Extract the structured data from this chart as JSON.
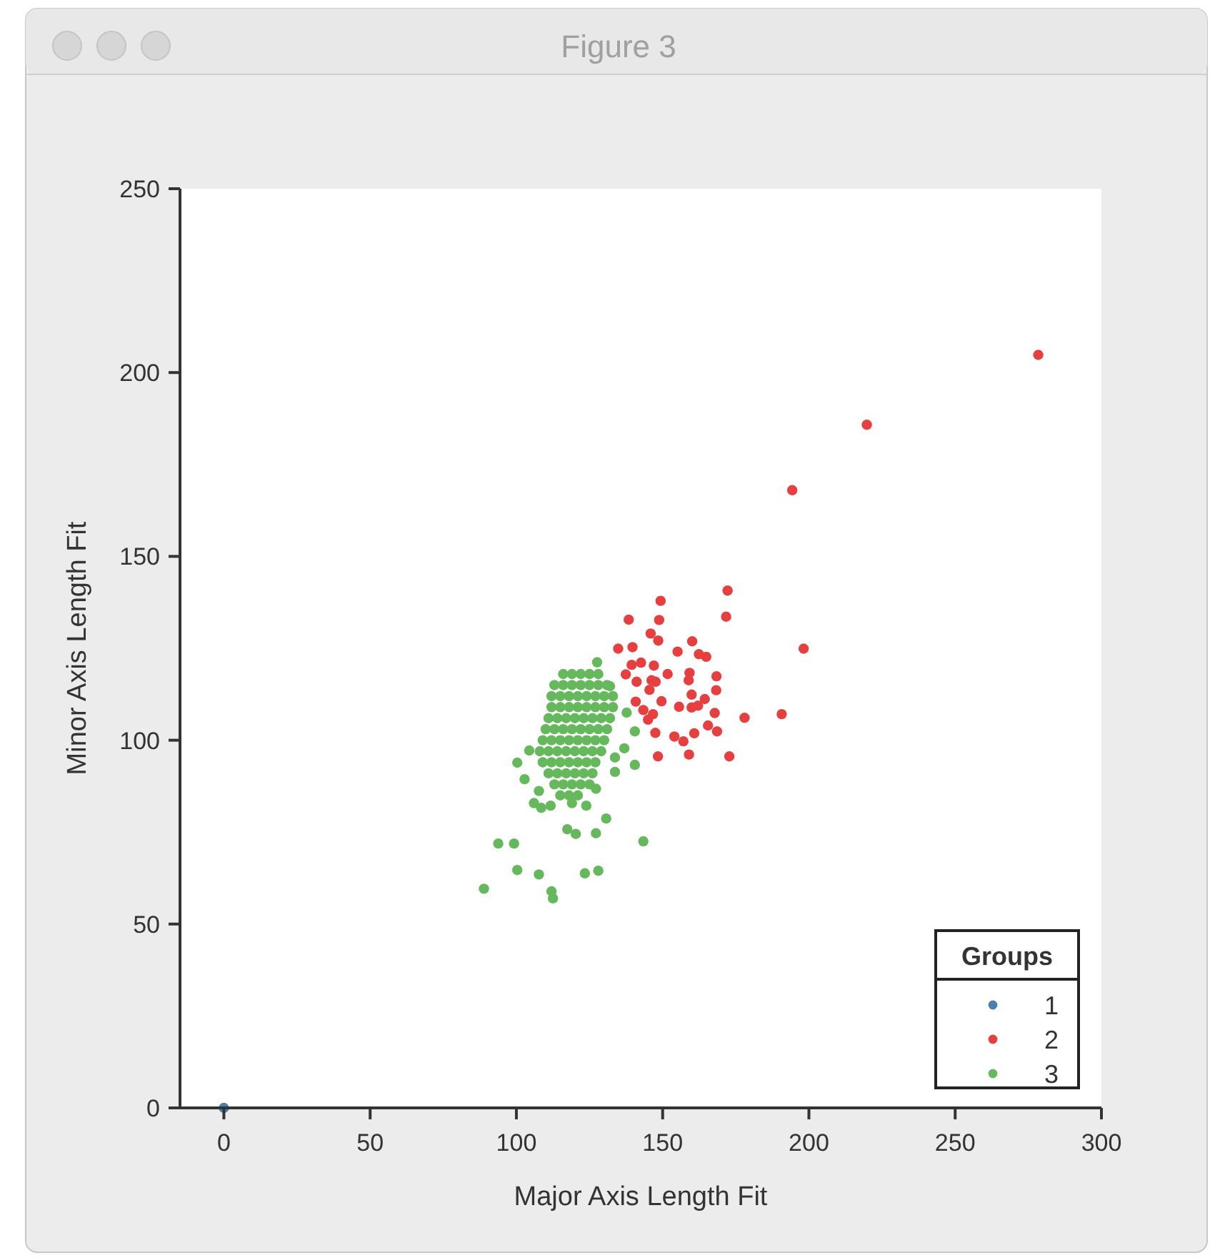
{
  "chart_data": {
    "type": "scatter",
    "title": "Figure 3",
    "xlabel": "Major Axis Length Fit",
    "ylabel": "Minor Axis Length Fit",
    "legend_title": "Groups",
    "xlim": [
      -15,
      300
    ],
    "ylim": [
      0,
      250
    ],
    "xticks": [
      0,
      50,
      100,
      150,
      200,
      250,
      300
    ],
    "yticks": [
      0,
      50,
      100,
      150,
      200,
      250
    ],
    "grid": false,
    "legend": "bottom right",
    "marker": "circle",
    "series": [
      {
        "name": "1",
        "color": "#4a7fb0",
        "x": [
          0
        ],
        "values": [
          0
        ]
      },
      {
        "name": "2",
        "color": "#e5403f",
        "x": [
          278.4,
          219.8,
          194.3,
          172.2,
          171.7,
          149.3,
          148.8,
          138.4,
          198.2,
          145.9,
          148.5,
          134.8,
          139.7,
          160.1,
          155.1,
          162.4,
          164.9,
          142.6,
          139.4,
          137.4,
          147.0,
          141.1,
          151.7,
          159.2,
          158.9,
          168.4,
          168.3,
          146.2,
          147.6,
          145.5,
          159.9,
          164.4,
          149.6,
          155.6,
          159.9,
          162.1,
          140.8,
          143.4,
          146.7,
          145.0,
          167.8,
          178.0,
          190.7,
          147.5,
          154.0,
          157.1,
          160.8,
          165.5,
          168.6,
          148.4,
          159.0,
          172.8
        ],
        "values": [
          204.8,
          185.8,
          168.0,
          140.7,
          133.6,
          137.9,
          132.7,
          132.8,
          124.9,
          129.0,
          127.1,
          124.9,
          125.3,
          126.9,
          124.1,
          123.4,
          122.7,
          121.1,
          120.5,
          117.9,
          120.3,
          115.9,
          118.0,
          118.3,
          116.3,
          117.4,
          113.6,
          116.3,
          115.9,
          113.7,
          112.4,
          111.2,
          110.6,
          109.1,
          108.9,
          109.4,
          110.5,
          108.2,
          107.1,
          105.6,
          107.4,
          106.1,
          107.1,
          102.0,
          101.0,
          99.7,
          101.9,
          104.0,
          102.4,
          95.6,
          96.1,
          95.6
        ]
      },
      {
        "name": "3",
        "color": "#66b85c",
        "x": [
          127.6,
          88.9,
          93.8,
          99.2,
          100.3,
          107.7,
          112.0,
          112.5,
          123.4,
          128.0,
          143.4,
          120.3,
          117.4,
          127.2,
          130.7,
          123.9,
          119.0,
          111.7,
          108.5,
          106.0,
          102.8,
          100.3,
          104.4,
          107.7,
          136.9,
          140.5,
          133.7,
          133.7,
          127.2,
          137.7,
          140.5,
          132.0,
          116,
          119,
          122,
          125,
          128,
          113,
          116,
          119,
          122,
          125,
          128,
          131,
          112,
          115,
          118,
          121,
          124,
          127,
          130,
          133,
          112,
          115,
          118,
          121,
          124,
          127,
          130,
          133,
          111,
          114,
          117,
          120,
          123,
          126,
          129,
          132,
          110,
          113,
          116,
          119,
          122,
          125,
          128,
          131,
          109,
          112,
          115,
          118,
          121,
          124,
          127,
          130,
          108,
          111,
          114,
          117,
          120,
          123,
          126,
          129,
          109,
          112,
          115,
          118,
          121,
          124,
          127,
          111,
          114,
          117,
          120,
          123,
          126,
          113,
          116,
          119,
          122,
          125,
          115,
          118,
          121
        ],
        "values": [
          121.2,
          59.6,
          71.9,
          71.9,
          64.7,
          63.5,
          58.9,
          57.0,
          63.8,
          64.5,
          72.5,
          74.5,
          75.8,
          74.7,
          78.7,
          82.2,
          82.9,
          82.2,
          81.6,
          82.9,
          89.4,
          93.9,
          97.2,
          86.2,
          97.8,
          93.3,
          95.3,
          91.4,
          86.8,
          107.5,
          102.4,
          114.7,
          118,
          118,
          118,
          118,
          118,
          115,
          115,
          115,
          115,
          115,
          115,
          115,
          112,
          112,
          112,
          112,
          112,
          112,
          112,
          112,
          109,
          109,
          109,
          109,
          109,
          109,
          109,
          109,
          106,
          106,
          106,
          106,
          106,
          106,
          106,
          106,
          103,
          103,
          103,
          103,
          103,
          103,
          103,
          103,
          100,
          100,
          100,
          100,
          100,
          100,
          100,
          100,
          97,
          97,
          97,
          97,
          97,
          97,
          97,
          97,
          94,
          94,
          94,
          94,
          94,
          94,
          94,
          91,
          91,
          91,
          91,
          91,
          91,
          88,
          88,
          88,
          88,
          88,
          85,
          85,
          85
        ]
      }
    ]
  }
}
